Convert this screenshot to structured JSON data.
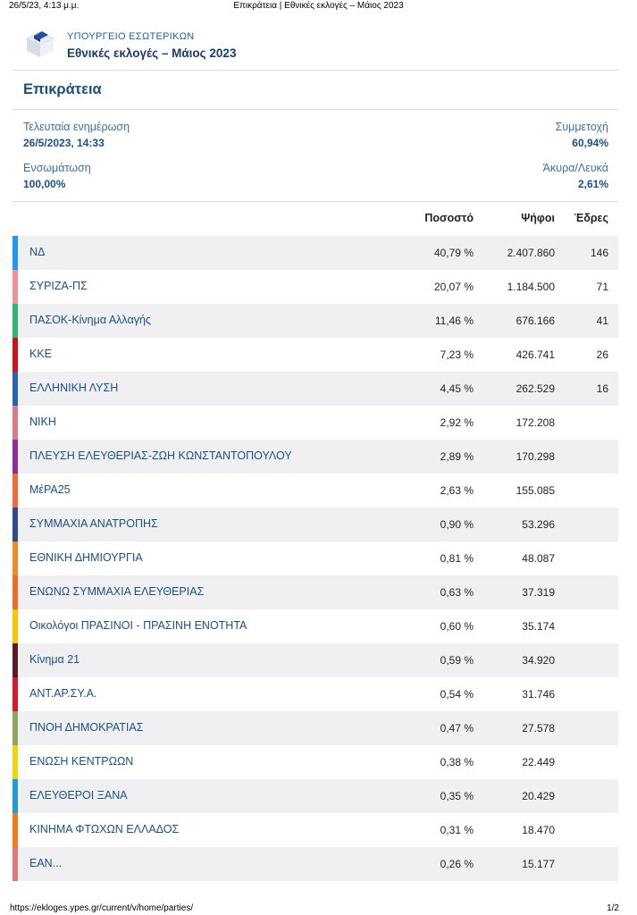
{
  "print_header": {
    "date": "26/5/23, 4:13 μ.μ.",
    "title": "Επικράτεια | Εθνικές εκλογές – Μάιος 2023"
  },
  "brand": {
    "ministry": "ΥΠΟΥΡΓΕΙΟ ΕΣΩΤΕΡΙΚΩΝ",
    "elections": "Εθνικές εκλογές – Μάιος 2023",
    "logo_icon": "ballot-box-icon"
  },
  "page_title": "Επικράτεια",
  "meta": {
    "last_update_label": "Τελευταία ενημέρωση",
    "last_update_value": "26/5/2023, 14:33",
    "turnout_label": "Συμμετοχή",
    "turnout_value": "60,94%",
    "integration_label": "Ενσωμάτωση",
    "integration_value": "100,00%",
    "invalid_label": "Άκυρα/Λευκά",
    "invalid_value": "2,61%"
  },
  "columns": {
    "percent": "Ποσοστό",
    "votes": "Ψήφοι",
    "seats": "Έδρες"
  },
  "parties": [
    {
      "name": "ΝΔ",
      "percent": "40,79 %",
      "votes": "2.407.860",
      "seats": "146",
      "color": "#2196f3"
    },
    {
      "name": "ΣΥΡΙΖΑ-ΠΣ",
      "percent": "20,07 %",
      "votes": "1.184.500",
      "seats": "71",
      "color": "#f29199"
    },
    {
      "name": "ΠΑΣΟΚ-Κίνημα Αλλαγής",
      "percent": "11,46 %",
      "votes": "676.166",
      "seats": "41",
      "color": "#2bb673"
    },
    {
      "name": "ΚΚΕ",
      "percent": "7,23 %",
      "votes": "426.741",
      "seats": "26",
      "color": "#d0121b"
    },
    {
      "name": "ΕΛΛΗΝΙΚΗ ΛΥΣΗ",
      "percent": "4,45 %",
      "votes": "262.529",
      "seats": "16",
      "color": "#2a64b0"
    },
    {
      "name": "ΝΙΚΗ",
      "percent": "2,92 %",
      "votes": "172.208",
      "seats": "",
      "color": "#d97a86"
    },
    {
      "name": "ΠΛΕΥΣΗ ΕΛΕΥΘΕΡΙΑΣ-ΖΩΗ ΚΩΝΣΤΑΝΤΟΠΟΥΛΟΥ",
      "percent": "2,89 %",
      "votes": "170.298",
      "seats": "",
      "color": "#8e2d9a"
    },
    {
      "name": "ΜέΡΑ25",
      "percent": "2,63 %",
      "votes": "155.085",
      "seats": "",
      "color": "#f26a3a"
    },
    {
      "name": "ΣΥΜΜΑΧΙΑ ΑΝΑΤΡΟΠΗΣ",
      "percent": "0,90 %",
      "votes": "53.296",
      "seats": "",
      "color": "#2b4c8f"
    },
    {
      "name": "ΕΘΝΙΚΗ ΔΗΜΙΟΥΡΓΙΑ",
      "percent": "0,81 %",
      "votes": "48.087",
      "seats": "",
      "color": "#ef8a2a"
    },
    {
      "name": "ΕΝΩΝΩ ΣΥΜΜΑΧΙΑ ΕΛΕΥΘΕΡΙΑΣ",
      "percent": "0,63 %",
      "votes": "37.319",
      "seats": "",
      "color": "#ee6a2f"
    },
    {
      "name": "Οικολόγοι ΠΡΑΣΙΝΟΙ - ΠΡΑΣΙΝΗ ΕΝΟΤΗΤΑ",
      "percent": "0,60 %",
      "votes": "35.174",
      "seats": "",
      "color": "#f7c600"
    },
    {
      "name": "Κίνημα 21",
      "percent": "0,59 %",
      "votes": "34.920",
      "seats": "",
      "color": "#5a1a2a"
    },
    {
      "name": "ΑΝΤ.ΑΡ.ΣΥ.Α.",
      "percent": "0,54 %",
      "votes": "31.746",
      "seats": "",
      "color": "#d51a2a"
    },
    {
      "name": "ΠΝΟΗ ΔΗΜΟΚΡΑΤΙΑΣ",
      "percent": "0,47 %",
      "votes": "27.578",
      "seats": "",
      "color": "#8fa65a"
    },
    {
      "name": "ΕΝΩΣΗ ΚΕΝΤΡΩΩΝ",
      "percent": "0,38 %",
      "votes": "22.449",
      "seats": "",
      "color": "#f2d311"
    },
    {
      "name": "ΕΛΕΥΘΕΡΟΙ ΞΑΝΑ",
      "percent": "0,35 %",
      "votes": "20.429",
      "seats": "",
      "color": "#1f9cd8"
    },
    {
      "name": "ΚΙΝΗΜΑ ΦΤΩΧΩΝ ΕΛΛΑΔΟΣ",
      "percent": "0,31 %",
      "votes": "18.470",
      "seats": "",
      "color": "#f27a1a"
    },
    {
      "name": "ΕΑΝ...",
      "percent": "0,26 %",
      "votes": "15.177",
      "seats": "",
      "color": "#e07a7a"
    }
  ],
  "print_footer": {
    "url": "https://ekloges.ypes.gr/current/v/home/parties/",
    "page": "1/2"
  }
}
